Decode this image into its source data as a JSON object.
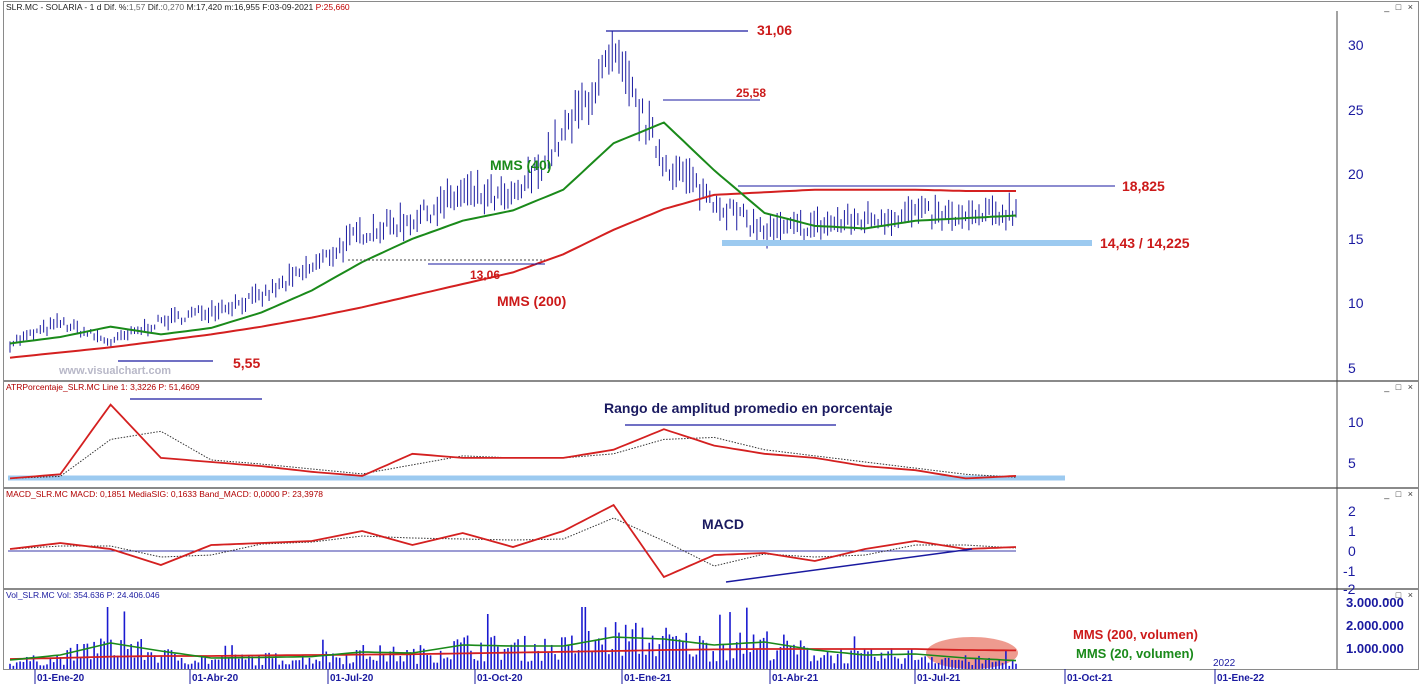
{
  "panels": {
    "price": {
      "header": {
        "symbol": "SLR.MC - SOLARIA - ",
        "period": "1 d",
        "dif_pct_label": "Dif. %:",
        "dif_pct": "1,57",
        "dif_label": "Dif.:",
        "dif": "0,270",
        "max_label": "M:",
        "max": "17,420",
        "min_label": "m:",
        "min": "16,955",
        "date_label": "F:",
        "date": "03-09-2021",
        "close_label": "P:",
        "close": "25,660"
      },
      "yticks": [
        "30",
        "25",
        "20",
        "15",
        "10",
        "5"
      ],
      "annotations": {
        "mms40": "MMS (40)",
        "mms200": "MMS (200)",
        "high": "31,06",
        "h2558": "25,58",
        "resist": "18,825",
        "support": "14,43 / 14,225",
        "s1306": "13,06",
        "low": "5,55",
        "watermark": "www.visualchart.com"
      }
    },
    "atr": {
      "header": "ATRPorcentaje_SLR.MC  Line 1: 3,3226  P: 51,4609",
      "title": "Rango de amplitud promedio en porcentaje",
      "yticks": [
        "10",
        "5"
      ]
    },
    "macd": {
      "header": "MACD_SLR.MC  MACD: 0,1851  MediaSIG: 0,1633  Band_MACD: 0,0000  P: 23,3978",
      "title": "MACD",
      "yticks": [
        "2",
        "1",
        "0",
        "-1",
        "-2"
      ]
    },
    "volume": {
      "header": "Vol_SLR.MC  Vol: 354.636  P: 24.406.046",
      "yticks": [
        "3.000.000",
        "2.000.000",
        "1.000.000"
      ],
      "mms200_label": "MMS (200, volumen)",
      "mms20_label": "MMS (20, volumen)",
      "year_label": "2022"
    }
  },
  "window_buttons": "_ □ ×",
  "xaxis": [
    "01-Ene-20",
    "01-Abr-20",
    "01-Jul-20",
    "01-Oct-20",
    "01-Ene-21",
    "01-Abr-21",
    "01-Jul-21",
    "01-Oct-21",
    "01-Ene-22"
  ],
  "colors": {
    "price": "#1a1aa0",
    "mms40": "#1a8a1a",
    "mms200": "#d42020",
    "support": "#9ccaf0",
    "axis": "#1a1aa0",
    "annotation_red": "#cc1a1a",
    "annotation_green": "#1a8a1a"
  },
  "chart_data": [
    {
      "type": "line",
      "title": "SLR.MC - SOLARIA",
      "x": [
        "2020-01",
        "2020-02",
        "2020-03",
        "2020-04",
        "2020-05",
        "2020-06",
        "2020-07",
        "2020-08",
        "2020-09",
        "2020-10",
        "2020-11",
        "2020-12",
        "2021-01",
        "2021-02",
        "2021-03",
        "2021-04",
        "2021-05",
        "2021-06",
        "2021-07",
        "2021-08",
        "2021-09"
      ],
      "series": [
        {
          "name": "Price",
          "values": [
            6.9,
            8.5,
            7.0,
            8.6,
            9.5,
            10.5,
            12.8,
            15.5,
            16.5,
            18.5,
            18.0,
            23.0,
            29.0,
            21.0,
            18.0,
            15.5,
            16.0,
            16.5,
            17.0,
            16.5,
            17.2
          ]
        },
        {
          "name": "MMS (40)",
          "values": [
            6.9,
            7.4,
            8.2,
            7.6,
            8.1,
            9.3,
            11.0,
            13.2,
            15.0,
            16.4,
            17.2,
            18.8,
            22.4,
            24.0,
            20.3,
            17.0,
            16.0,
            15.8,
            16.4,
            16.6,
            16.8
          ]
        },
        {
          "name": "MMS (200)",
          "values": [
            5.8,
            6.2,
            6.6,
            7.1,
            7.6,
            8.2,
            8.9,
            9.7,
            10.6,
            11.5,
            12.4,
            13.8,
            15.7,
            17.3,
            18.4,
            18.6,
            18.8,
            18.8,
            18.8,
            18.7,
            18.7
          ]
        }
      ],
      "annotations": {
        "max": 31.06,
        "level_2558": 25.58,
        "resistance": 18.825,
        "support": "14,43 / 14,225",
        "level_1306": 13.06,
        "min": 5.55
      },
      "ylim": [
        4,
        33
      ]
    },
    {
      "type": "line",
      "title": "Rango de amplitud promedio en porcentaje",
      "x": [
        "2020-01",
        "2020-02",
        "2020-03",
        "2020-04",
        "2020-05",
        "2020-06",
        "2020-07",
        "2020-08",
        "2020-09",
        "2020-10",
        "2020-11",
        "2020-12",
        "2021-01",
        "2021-02",
        "2021-03",
        "2021-04",
        "2021-05",
        "2021-06",
        "2021-07",
        "2021-08",
        "2021-09"
      ],
      "series": [
        {
          "name": "ATRPorcentaje",
          "values": [
            3.0,
            3.5,
            12.0,
            5.5,
            5.0,
            4.5,
            3.8,
            3.3,
            6.0,
            5.5,
            5.5,
            5.5,
            6.5,
            9.0,
            7.0,
            6.0,
            5.5,
            4.5,
            4.0,
            3.0,
            3.3
          ]
        }
      ],
      "ylim": [
        2,
        13
      ]
    },
    {
      "type": "line",
      "title": "MACD",
      "x": [
        "2020-01",
        "2020-02",
        "2020-03",
        "2020-04",
        "2020-05",
        "2020-06",
        "2020-07",
        "2020-08",
        "2020-09",
        "2020-10",
        "2020-11",
        "2020-12",
        "2021-01",
        "2021-02",
        "2021-03",
        "2021-04",
        "2021-05",
        "2021-06",
        "2021-07",
        "2021-08",
        "2021-09"
      ],
      "series": [
        {
          "name": "MACD",
          "values": [
            0.1,
            0.4,
            0.1,
            -0.7,
            0.3,
            0.4,
            0.5,
            1.0,
            0.3,
            0.9,
            0.2,
            1.0,
            2.3,
            -1.3,
            -0.2,
            -0.1,
            -0.5,
            0.1,
            0.5,
            0.1,
            0.2
          ]
        }
      ],
      "ylim": [
        -2,
        2.4
      ]
    },
    {
      "type": "bar",
      "title": "Vol_SLR.MC",
      "x": [
        "2020-01",
        "2020-02",
        "2020-03",
        "2020-04",
        "2020-05",
        "2020-06",
        "2020-07",
        "2020-08",
        "2020-09",
        "2020-10",
        "2020-11",
        "2020-12",
        "2021-01",
        "2021-02",
        "2021-03",
        "2021-04",
        "2021-05",
        "2021-06",
        "2021-07",
        "2021-08",
        "2021-09"
      ],
      "series": [
        {
          "name": "Vol",
          "values": [
            400000,
            600000,
            1500000,
            800000,
            500000,
            600000,
            600000,
            900000,
            800000,
            1300000,
            1200000,
            1200000,
            1800000,
            1600000,
            1200000,
            1500000,
            900000,
            700000,
            800000,
            500000,
            400000
          ]
        },
        {
          "name": "MMS (200, volumen)",
          "values": [
            500000,
            550000,
            620000,
            650000,
            650000,
            680000,
            700000,
            720000,
            740000,
            780000,
            820000,
            860000,
            900000,
            950000,
            980000,
            1000000,
            1000000,
            1000000,
            1000000,
            950000,
            930000
          ]
        },
        {
          "name": "MMS (20, volumen)",
          "values": [
            450000,
            700000,
            1300000,
            900000,
            550000,
            580000,
            620000,
            850000,
            800000,
            1200000,
            1150000,
            1150000,
            1600000,
            1500000,
            1200000,
            1350000,
            950000,
            700000,
            750000,
            550000,
            420000
          ]
        }
      ],
      "ylim": [
        0,
        3200000
      ]
    }
  ]
}
